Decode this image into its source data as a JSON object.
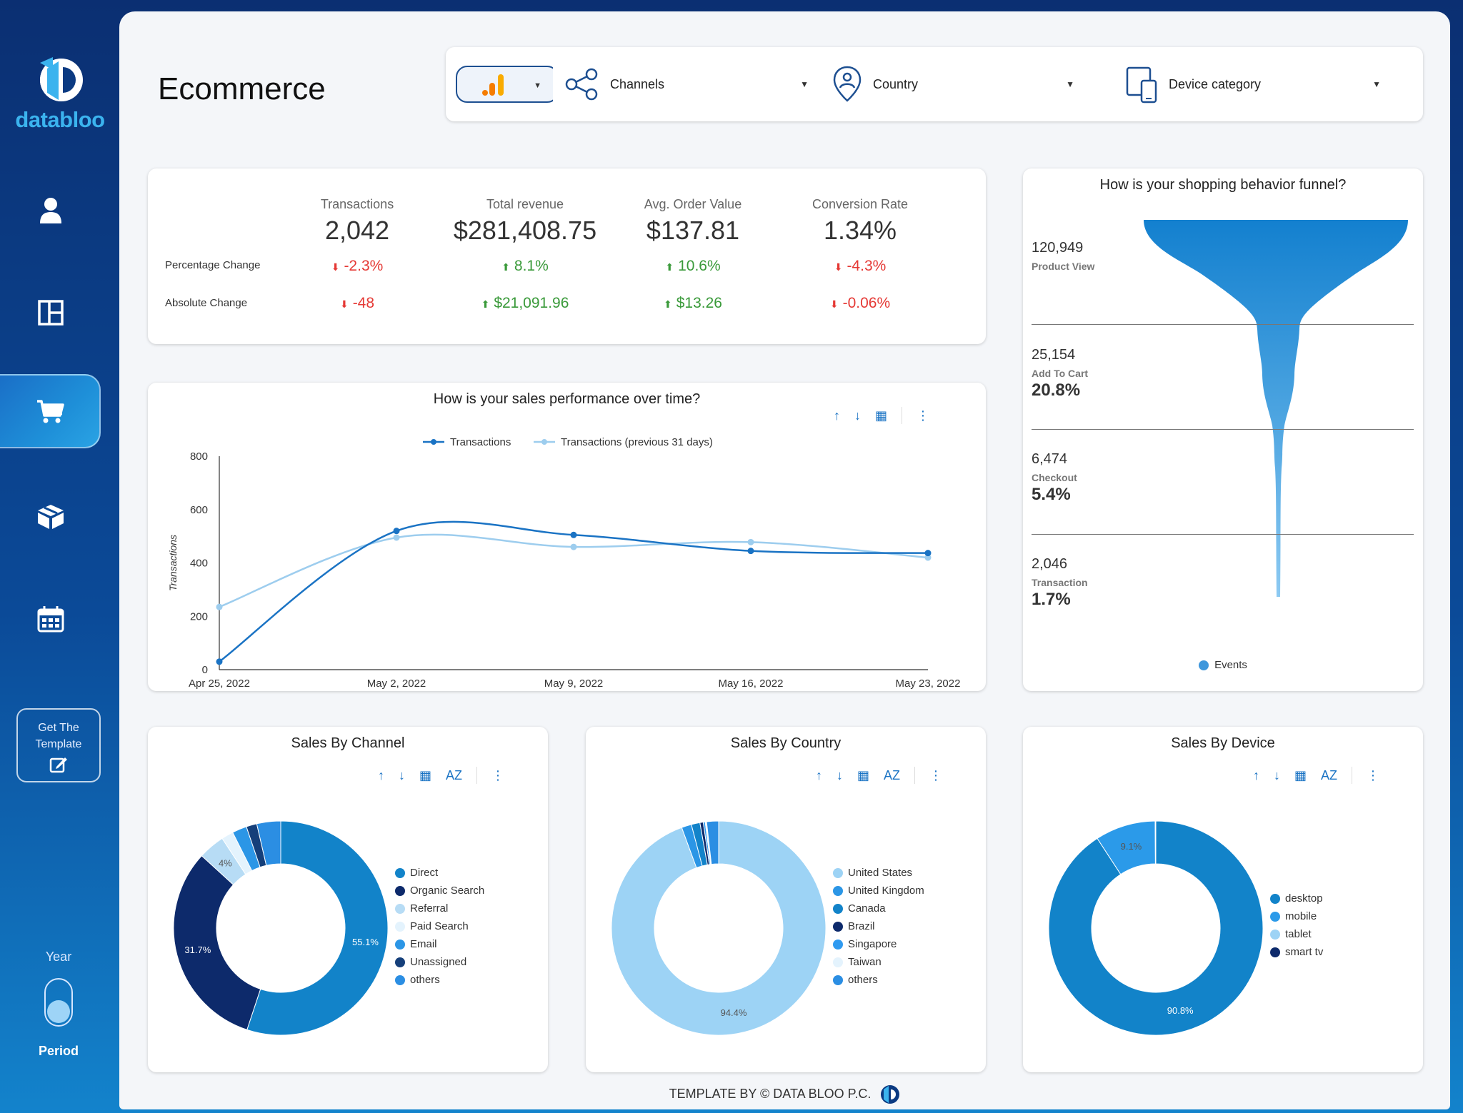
{
  "sidebar": {
    "brand": "databloo",
    "get_template_label": "Get The Template",
    "year_label": "Year",
    "period_label": "Period"
  },
  "header": {
    "title": "Ecommerce"
  },
  "filters": {
    "channels": "Channels",
    "country": "Country",
    "device": "Device category"
  },
  "kpi": {
    "columns": [
      {
        "label": "Transactions",
        "value": "2,042",
        "pct": "-2.3%",
        "abs": "-48",
        "pct_dir": "neg",
        "abs_dir": "neg"
      },
      {
        "label": "Total revenue",
        "value": "$281,408.75",
        "pct": "8.1%",
        "abs": "$21,091.96",
        "pct_dir": "pos",
        "abs_dir": "pos"
      },
      {
        "label": "Avg. Order Value",
        "value": "$137.81",
        "pct": "10.6%",
        "abs": "$13.26",
        "pct_dir": "pos",
        "abs_dir": "pos"
      },
      {
        "label": "Conversion Rate",
        "value": "1.34%",
        "pct": "-4.3%",
        "abs": "-0.06%",
        "pct_dir": "neg",
        "abs_dir": "neg"
      }
    ],
    "row_pct_label": "Percentage Change",
    "row_abs_label": "Absolute Change"
  },
  "funnel": {
    "title": "How is your shopping behavior funnel?",
    "legend": "Events",
    "stages": [
      {
        "count": "120,949",
        "name": "Product View",
        "pct": ""
      },
      {
        "count": "25,154",
        "name": "Add To Cart",
        "pct": "20.8%"
      },
      {
        "count": "6,474",
        "name": "Checkout",
        "pct": "5.4%"
      },
      {
        "count": "2,046",
        "name": "Transaction",
        "pct": "1.7%"
      }
    ]
  },
  "footer": {
    "text": "TEMPLATE BY © DATA BLOO P.C."
  },
  "colors": {
    "accent": "#1a73c4",
    "dark_navy": "#0d2a6b",
    "mid_blue": "#1283c9",
    "light_blue": "#9dd3f5"
  },
  "chart_data": [
    {
      "type": "line",
      "title": "How is your sales performance over time?",
      "xlabel": "",
      "ylabel": "Transactions",
      "x": [
        "Apr 25, 2022",
        "May 2, 2022",
        "May 9, 2022",
        "May 16, 2022",
        "May 23, 2022"
      ],
      "ylim": [
        0,
        800
      ],
      "yticks": [
        0,
        200,
        400,
        600,
        800
      ],
      "series": [
        {
          "name": "Transactions",
          "values": [
            30,
            520,
            505,
            445,
            437
          ],
          "color": "#1a73c4"
        },
        {
          "name": "Transactions (previous 31 days)",
          "values": [
            235,
            495,
            460,
            478,
            420
          ],
          "color": "#9dcdee"
        }
      ]
    },
    {
      "type": "pie",
      "title": "Sales By Channel",
      "categories": [
        "Direct",
        "Organic Search",
        "Referral",
        "Paid Search",
        "Email",
        "Unassigned",
        "others"
      ],
      "values": [
        55.1,
        31.7,
        4.0,
        1.8,
        2.2,
        1.6,
        3.6
      ],
      "colors": [
        "#1283c9",
        "#0d2a6b",
        "#b7dcf5",
        "#e4f3fd",
        "#2b96e6",
        "#153f7a",
        "#2b8ee3"
      ],
      "labels": [
        "55.1%",
        "31.7%",
        "4%",
        "",
        "",
        "",
        ""
      ]
    },
    {
      "type": "pie",
      "title": "Sales By Country",
      "categories": [
        "United States",
        "United Kingdom",
        "Canada",
        "Brazil",
        "Singapore",
        "Taiwan",
        "others"
      ],
      "values": [
        94.4,
        1.5,
        1.3,
        0.5,
        0.3,
        0.2,
        1.8
      ],
      "colors": [
        "#9dd3f5",
        "#2b96e6",
        "#1283c9",
        "#0d2a6b",
        "#2f9af0",
        "#e4f3fd",
        "#2b8ee3"
      ],
      "labels": [
        "94.4%",
        "",
        "",
        "",
        "",
        "",
        ""
      ]
    },
    {
      "type": "pie",
      "title": "Sales By Device",
      "categories": [
        "desktop",
        "mobile",
        "tablet",
        "smart tv"
      ],
      "values": [
        90.8,
        9.1,
        0.05,
        0.05
      ],
      "colors": [
        "#1283c9",
        "#2b9ae9",
        "#9dd3f5",
        "#0d2a6b"
      ],
      "labels": [
        "90.8%",
        "9.1%",
        "",
        ""
      ]
    }
  ]
}
